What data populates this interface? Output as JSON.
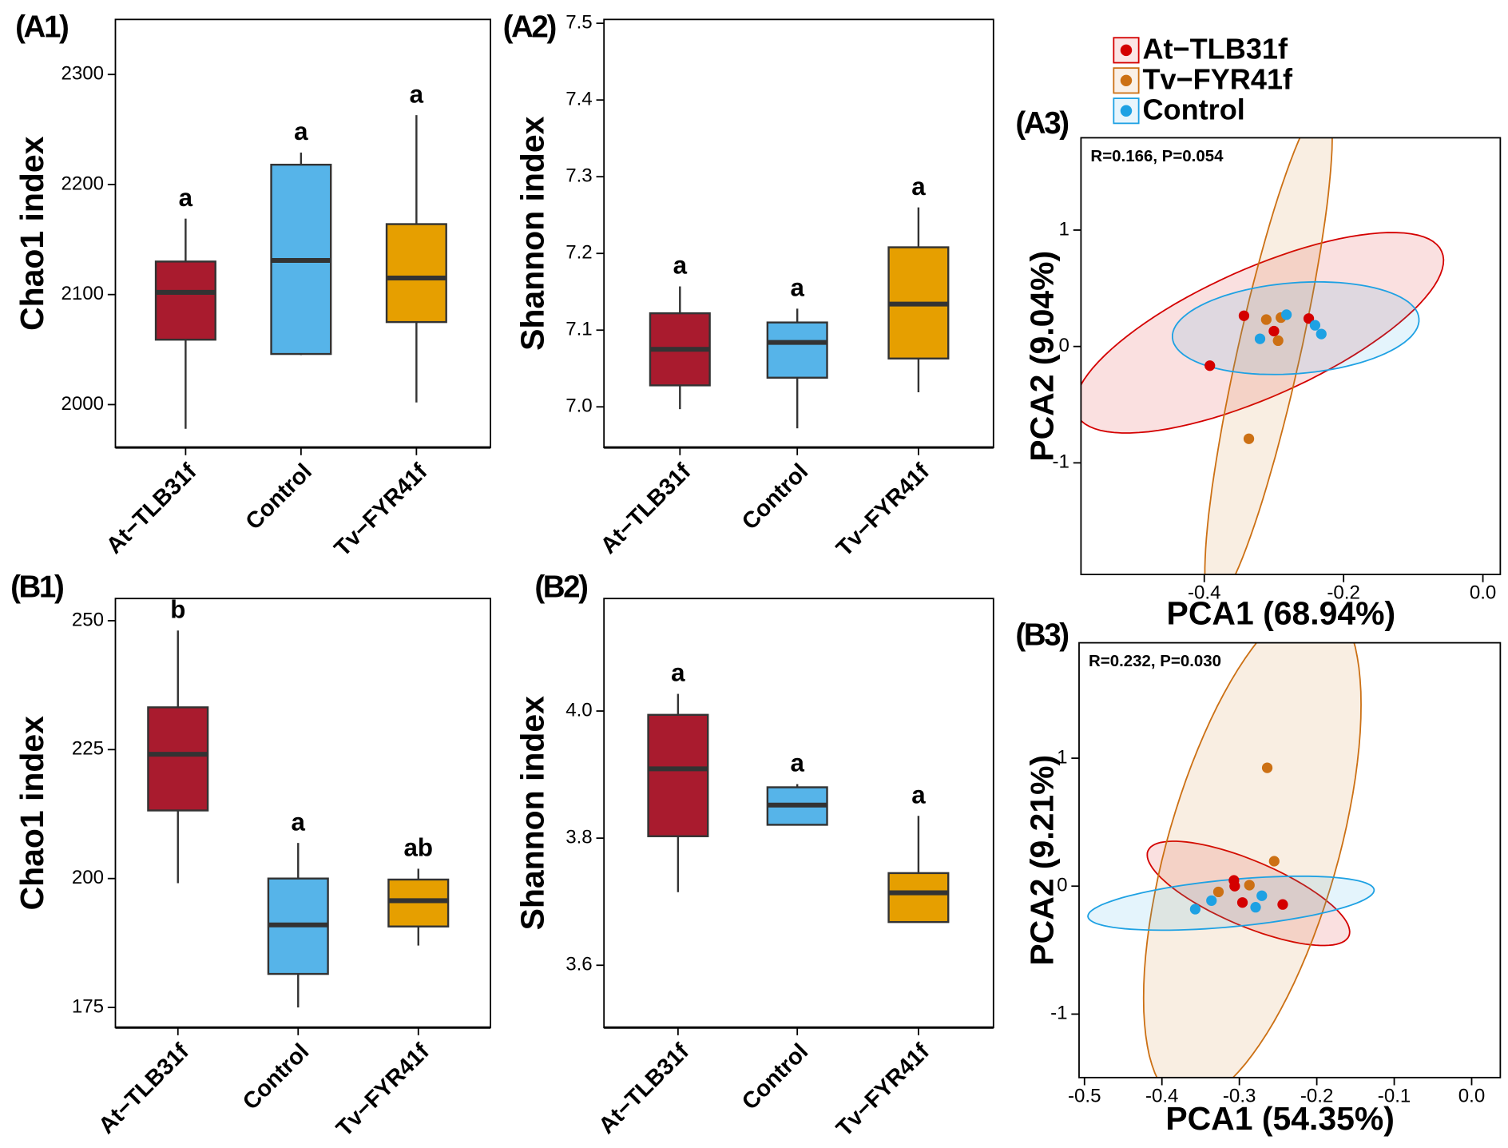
{
  "chart_data": [
    {
      "type": "box",
      "panel_label": "(A1)",
      "ylabel": "Chao1 index",
      "categories": [
        "At−TLB31f",
        "Control",
        "Tv−FYR41f"
      ],
      "colors": [
        "#a91b2e",
        "#56b4e9",
        "#e69f00"
      ],
      "boxes": [
        {
          "low": 1978,
          "q1": 2059,
          "median": 2102,
          "q3": 2130,
          "high": 2169
        },
        {
          "low": 2045,
          "q1": 2046,
          "median": 2131,
          "q3": 2218,
          "high": 2229
        },
        {
          "low": 2002,
          "q1": 2075,
          "median": 2115,
          "q3": 2164,
          "high": 2263
        }
      ],
      "letters": [
        "a",
        "a",
        "a"
      ],
      "ylim": [
        1961,
        2350
      ],
      "yticks": [
        2000,
        2100,
        2200,
        2300
      ]
    },
    {
      "type": "box",
      "panel_label": "(A2)",
      "ylabel": "Shannon index",
      "categories": [
        "At−TLB31f",
        "Control",
        "Tv−FYR41f"
      ],
      "colors": [
        "#a91b2e",
        "#56b4e9",
        "#e69f00"
      ],
      "boxes": [
        {
          "low": 6.997,
          "q1": 7.028,
          "median": 7.075,
          "q3": 7.122,
          "high": 7.157
        },
        {
          "low": 6.972,
          "q1": 7.038,
          "median": 7.084,
          "q3": 7.11,
          "high": 7.128
        },
        {
          "low": 7.019,
          "q1": 7.063,
          "median": 7.134,
          "q3": 7.208,
          "high": 7.26
        }
      ],
      "letters": [
        "a",
        "a",
        "a"
      ],
      "ylim": [
        6.947,
        7.505
      ],
      "yticks": [
        {
          "value": 7,
          "label": "7.0"
        },
        7.1,
        7.2,
        7.3,
        7.4,
        7.5
      ]
    },
    {
      "type": "scatter",
      "panel_label": "(A3)",
      "annotation": "R=0.166, P=0.054",
      "xlabel": "PCA1 (68.94%)",
      "ylabel": "PCA2 (9.04%)",
      "series": [
        {
          "name": "At−TLB31f",
          "color": "#d40000",
          "x": [
            -0.343,
            -0.3,
            -0.25,
            -0.392
          ],
          "values": [
            0.264,
            0.132,
            0.24,
            -0.165
          ]
        },
        {
          "name": "Tv−FYR41f",
          "color": "#cc7014",
          "x": [
            -0.311,
            -0.29,
            -0.294,
            -0.336
          ],
          "values": [
            0.231,
            0.248,
            0.05,
            -0.793
          ]
        },
        {
          "name": "Control",
          "color": "#1ea1e3",
          "x": [
            -0.282,
            -0.241,
            -0.232,
            -0.32
          ],
          "values": [
            0.273,
            0.182,
            0.107,
            0.066
          ]
        }
      ],
      "xlim": [
        -0.577,
        0.025
      ],
      "ylim": [
        -1.959,
        1.793
      ],
      "xticks": [
        -0.4,
        -0.2,
        {
          "value": 0,
          "label": "0.0"
        }
      ],
      "yticks": [
        -1,
        0,
        1
      ]
    },
    {
      "type": "box",
      "panel_label": "(B1)",
      "ylabel": "Chao1 index",
      "categories": [
        "At−TLB31f",
        "Control",
        "Tv−FYR41f"
      ],
      "colors": [
        "#a91b2e",
        "#56b4e9",
        "#e69f00"
      ],
      "boxes": [
        {
          "low": 199.1,
          "q1": 213.2,
          "median": 224.1,
          "q3": 233.2,
          "high": 248.1
        },
        {
          "low": 175,
          "q1": 181.5,
          "median": 191.0,
          "q3": 200.0,
          "high": 206.9
        },
        {
          "low": 187.0,
          "q1": 190.7,
          "median": 195.7,
          "q3": 199.8,
          "high": 201.9
        }
      ],
      "letters": [
        "b",
        "a",
        "ab"
      ],
      "ylim": [
        171.1,
        254.3
      ],
      "yticks": [
        175,
        200,
        225,
        250
      ]
    },
    {
      "type": "box",
      "panel_label": "(B2)",
      "ylabel": "Shannon index",
      "categories": [
        "At−TLB31f",
        "Control",
        "Tv−FYR41f"
      ],
      "colors": [
        "#a91b2e",
        "#56b4e9",
        "#e69f00"
      ],
      "boxes": [
        {
          "low": 3.715,
          "q1": 3.803,
          "median": 3.909,
          "q3": 3.994,
          "high": 4.027
        },
        {
          "low": 3.82,
          "q1": 3.821,
          "median": 3.852,
          "q3": 3.88,
          "high": 3.885
        },
        {
          "low": 3.668,
          "q1": 3.668,
          "median": 3.714,
          "q3": 3.745,
          "high": 3.835
        }
      ],
      "letters": [
        "a",
        "a",
        "a"
      ],
      "ylim": [
        3.502,
        4.177
      ],
      "yticks": [
        3.6,
        3.8,
        {
          "value": 4,
          "label": "4.0"
        }
      ]
    },
    {
      "type": "scatter",
      "panel_label": "(B3)",
      "annotation": "R=0.232, P=0.030",
      "xlabel": "PCA1 (54.35%)",
      "ylabel": "PCA2 (9.21%)",
      "series": [
        {
          "color": "#d40000",
          "x": [
            -0.307,
            -0.306,
            -0.296,
            -0.244
          ],
          "values": [
            0.045,
            0.0,
            -0.128,
            -0.143
          ]
        },
        {
          "color": "#cc7014",
          "x": [
            -0.264,
            -0.255,
            -0.287,
            -0.327
          ],
          "values": [
            0.925,
            0.195,
            0.008,
            -0.045
          ]
        },
        {
          "color": "#1ea1e3",
          "x": [
            -0.357,
            -0.336,
            -0.279,
            -0.271
          ],
          "values": [
            -0.18,
            -0.113,
            -0.165,
            -0.075
          ]
        }
      ],
      "xlim": [
        -0.507,
        0.037
      ],
      "ylim": [
        -1.496,
        1.902
      ],
      "xticks": [
        -0.5,
        -0.4,
        -0.3,
        -0.2,
        -0.1,
        {
          "value": 0,
          "label": "0.0"
        }
      ],
      "yticks": [
        -1,
        0,
        1
      ]
    }
  ]
}
